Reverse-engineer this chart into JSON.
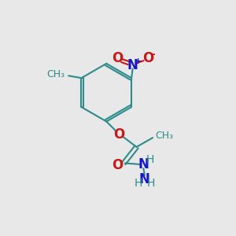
{
  "bg_color": "#e8e8e8",
  "bond_color": "#2e8b8b",
  "N_color": "#1515cc",
  "O_color": "#cc1515",
  "H_color": "#2e8b8b",
  "lw": 1.5,
  "figsize": [
    3.0,
    3.0
  ],
  "dpi": 100,
  "xlim": [
    0,
    10
  ],
  "ylim": [
    0,
    10
  ]
}
